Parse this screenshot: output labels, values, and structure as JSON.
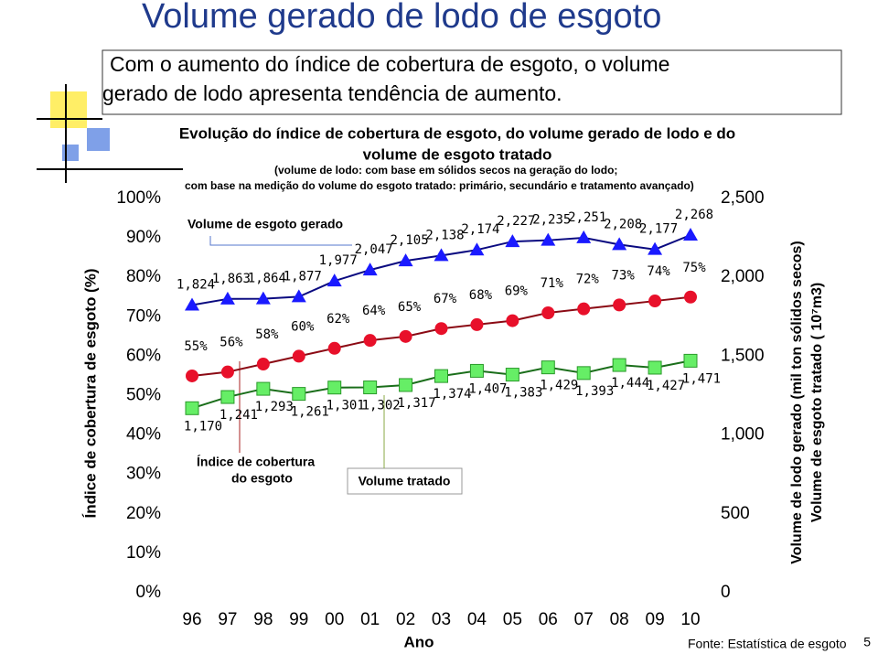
{
  "header": {
    "title": "Volume gerado de lodo de esgoto",
    "text": [
      "Com o aumento do índice de cobertura de esgoto, o volume",
      "gerado de lodo apresenta tendência de aumento."
    ]
  },
  "chart_data": {
    "type": "line",
    "title": [
      "Evolução do índice de cobertura de esgoto, do volume gerado de lodo e do",
      "volume de esgoto tratado"
    ],
    "note": [
      "(volume de lodo: com base em sólidos secos na geração do lodo;",
      "com base na medição do volume do esgoto tratado: primário, secundário e tratamento avançado)"
    ],
    "categories": [
      "96",
      "97",
      "98",
      "99",
      "00",
      "01",
      "02",
      "03",
      "04",
      "05",
      "06",
      "07",
      "08",
      "09",
      "10"
    ],
    "x_label": "Ano",
    "y_label": "Índice de cobertura de esgoto (%)",
    "y2_label": [
      "Volume de lodo gerado (mil ton sólidos secos)",
      "Volume de esgoto tratado ( 10⁷m3)"
    ],
    "ylim": [
      0,
      100
    ],
    "yticks": [
      {
        "value": 0,
        "label": "0%"
      },
      {
        "value": 10,
        "label": "10%"
      },
      {
        "value": 20,
        "label": "20%"
      },
      {
        "value": 30,
        "label": "30%"
      },
      {
        "value": 40,
        "label": "40%"
      },
      {
        "value": 50,
        "label": "50%"
      },
      {
        "value": 60,
        "label": "60%"
      },
      {
        "value": 70,
        "label": "70%"
      },
      {
        "value": 80,
        "label": "80%"
      },
      {
        "value": 90,
        "label": "90%"
      },
      {
        "value": 100,
        "label": "100%"
      }
    ],
    "y2lim": [
      0,
      2500
    ],
    "y2ticks": [
      0,
      500,
      {
        "value": 1000,
        "label": "1,000"
      },
      {
        "value": 1500,
        "label": "1,500"
      },
      {
        "value": 2000,
        "label": "2,000"
      },
      {
        "value": 2500,
        "label": "2,500"
      }
    ],
    "series": [
      {
        "color": "#e8102a",
        "line_color": "#8b0a14",
        "marker": "circle",
        "values": [
          55,
          56,
          58,
          60,
          62,
          64,
          65,
          67,
          68,
          69,
          71,
          72,
          73,
          74,
          75
        ],
        "value_labels": [
          "55%",
          "56%",
          "58%",
          "60%",
          "62%",
          "64%",
          "65%",
          "67%",
          "68%",
          "69%",
          "71%",
          "72%",
          "73%",
          "74%",
          "75%"
        ]
      },
      {
        "color": "#1a1aff",
        "line_color": "#0a0a80",
        "marker": "triangle",
        "axis": "y2",
        "values": [
          1824,
          1863,
          1864,
          1877,
          1977,
          2047,
          2105,
          2138,
          2174,
          2227,
          2235,
          2251,
          2208,
          2177,
          2268
        ],
        "value_labels": [
          "1,824",
          "1,863",
          "1,864",
          "1,877",
          "1,977",
          "2,047",
          "2,105",
          "2,138",
          "2,174",
          "2,227",
          "2,235",
          "2,251",
          "2,208",
          "2,177",
          "2,268"
        ]
      },
      {
        "color": "#66ee66",
        "line_color": "#1a6e1a",
        "marker": "square",
        "axis": "y2",
        "values": [
          1170,
          1241,
          1293,
          1261,
          1301,
          1302,
          1317,
          1374,
          1407,
          1383,
          1429,
          1393,
          1444,
          1427,
          1471
        ],
        "value_labels": [
          "1,170",
          "1,241",
          "1,293",
          "1,261",
          "1,301",
          "1,302",
          "1,317",
          "1,374",
          "1,407",
          "1,383",
          "1,429",
          "1,393",
          "1,444",
          "1,427",
          "1,471"
        ]
      }
    ],
    "annotations": [
      [
        "Volume de esgoto gerado"
      ],
      [
        "Índice de cobertura",
        "do esgoto"
      ],
      [
        "Volume tratado"
      ]
    ]
  },
  "source": "Fonte: Estatística de esgoto",
  "page": "5"
}
